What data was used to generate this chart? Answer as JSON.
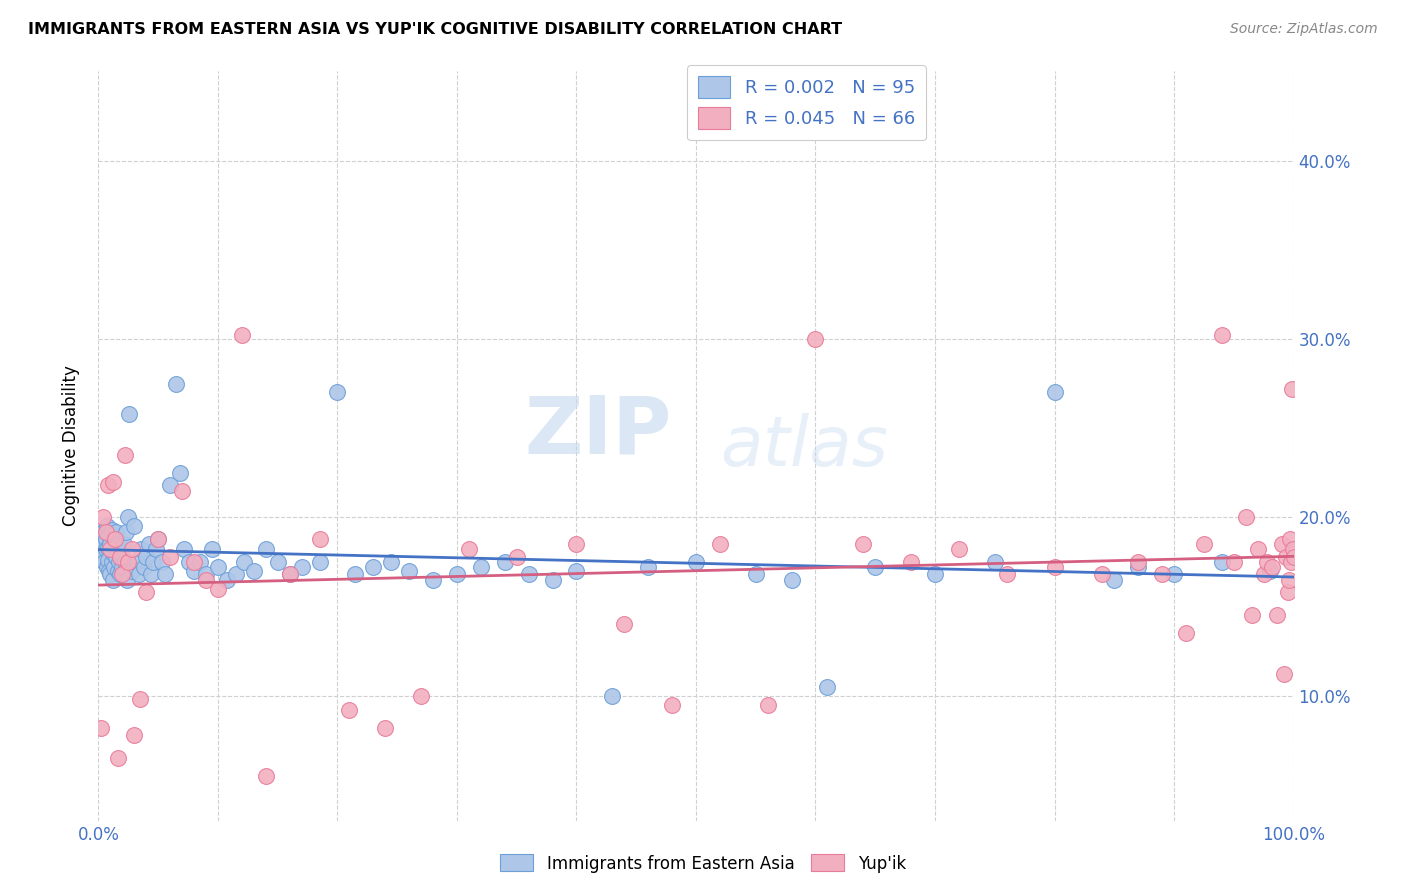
{
  "title": "IMMIGRANTS FROM EASTERN ASIA VS YUP'IK COGNITIVE DISABILITY CORRELATION CHART",
  "source": "Source: ZipAtlas.com",
  "ylabel": "Cognitive Disability",
  "ytick_labels": [
    "10.0%",
    "20.0%",
    "30.0%",
    "40.0%"
  ],
  "ytick_values": [
    0.1,
    0.2,
    0.3,
    0.4
  ],
  "xlim": [
    0.0,
    1.0
  ],
  "ylim": [
    0.03,
    0.45
  ],
  "blue_R": "R = 0.002",
  "blue_N": "N = 95",
  "pink_R": "R = 0.045",
  "pink_N": "N = 66",
  "blue_color": "#aec6e8",
  "pink_color": "#f2afc0",
  "blue_edge_color": "#6a9fd8",
  "pink_edge_color": "#e87a9a",
  "blue_line_color": "#4472c4",
  "pink_line_color": "#d45f80",
  "legend_label_blue": "Immigrants from Eastern Asia",
  "legend_label_pink": "Yup'ik",
  "watermark_zip": "ZIP",
  "watermark_atlas": "atlas",
  "blue_scatter_x": [
    0.002,
    0.003,
    0.004,
    0.005,
    0.006,
    0.006,
    0.007,
    0.007,
    0.008,
    0.008,
    0.009,
    0.009,
    0.01,
    0.01,
    0.011,
    0.011,
    0.012,
    0.012,
    0.013,
    0.013,
    0.014,
    0.015,
    0.015,
    0.016,
    0.016,
    0.017,
    0.018,
    0.019,
    0.02,
    0.021,
    0.022,
    0.023,
    0.024,
    0.025,
    0.026,
    0.028,
    0.03,
    0.032,
    0.034,
    0.036,
    0.038,
    0.04,
    0.042,
    0.044,
    0.046,
    0.048,
    0.05,
    0.053,
    0.056,
    0.06,
    0.065,
    0.068,
    0.072,
    0.076,
    0.08,
    0.085,
    0.09,
    0.095,
    0.1,
    0.108,
    0.115,
    0.122,
    0.13,
    0.14,
    0.15,
    0.16,
    0.17,
    0.185,
    0.2,
    0.215,
    0.23,
    0.245,
    0.26,
    0.28,
    0.3,
    0.32,
    0.34,
    0.36,
    0.38,
    0.4,
    0.43,
    0.46,
    0.5,
    0.55,
    0.58,
    0.61,
    0.65,
    0.7,
    0.75,
    0.8,
    0.85,
    0.87,
    0.9,
    0.94,
    0.98
  ],
  "blue_scatter_y": [
    0.185,
    0.178,
    0.192,
    0.175,
    0.188,
    0.182,
    0.195,
    0.172,
    0.183,
    0.176,
    0.19,
    0.17,
    0.185,
    0.168,
    0.193,
    0.175,
    0.18,
    0.165,
    0.188,
    0.172,
    0.183,
    0.178,
    0.192,
    0.17,
    0.185,
    0.175,
    0.168,
    0.18,
    0.172,
    0.185,
    0.175,
    0.192,
    0.165,
    0.2,
    0.258,
    0.17,
    0.195,
    0.175,
    0.168,
    0.182,
    0.172,
    0.178,
    0.185,
    0.168,
    0.175,
    0.182,
    0.188,
    0.175,
    0.168,
    0.218,
    0.275,
    0.225,
    0.182,
    0.175,
    0.17,
    0.175,
    0.168,
    0.182,
    0.172,
    0.165,
    0.168,
    0.175,
    0.17,
    0.182,
    0.175,
    0.168,
    0.172,
    0.175,
    0.27,
    0.168,
    0.172,
    0.175,
    0.17,
    0.165,
    0.168,
    0.172,
    0.175,
    0.168,
    0.165,
    0.17,
    0.1,
    0.172,
    0.175,
    0.168,
    0.165,
    0.105,
    0.172,
    0.168,
    0.175,
    0.27,
    0.165,
    0.172,
    0.168,
    0.175,
    0.17
  ],
  "pink_scatter_x": [
    0.002,
    0.004,
    0.006,
    0.008,
    0.01,
    0.012,
    0.014,
    0.016,
    0.018,
    0.02,
    0.022,
    0.025,
    0.028,
    0.03,
    0.035,
    0.04,
    0.05,
    0.06,
    0.07,
    0.08,
    0.09,
    0.1,
    0.12,
    0.14,
    0.16,
    0.185,
    0.21,
    0.24,
    0.27,
    0.31,
    0.35,
    0.4,
    0.44,
    0.48,
    0.52,
    0.56,
    0.6,
    0.64,
    0.68,
    0.72,
    0.76,
    0.8,
    0.84,
    0.87,
    0.89,
    0.91,
    0.925,
    0.94,
    0.95,
    0.96,
    0.965,
    0.97,
    0.975,
    0.978,
    0.982,
    0.986,
    0.99,
    0.992,
    0.994,
    0.995,
    0.996,
    0.997,
    0.998,
    0.999,
    0.9995,
    1.0
  ],
  "pink_scatter_y": [
    0.082,
    0.2,
    0.192,
    0.218,
    0.182,
    0.22,
    0.188,
    0.065,
    0.178,
    0.168,
    0.235,
    0.175,
    0.182,
    0.078,
    0.098,
    0.158,
    0.188,
    0.178,
    0.215,
    0.175,
    0.165,
    0.16,
    0.302,
    0.055,
    0.168,
    0.188,
    0.092,
    0.082,
    0.1,
    0.182,
    0.178,
    0.185,
    0.14,
    0.095,
    0.185,
    0.095,
    0.3,
    0.185,
    0.175,
    0.182,
    0.168,
    0.172,
    0.168,
    0.175,
    0.168,
    0.135,
    0.185,
    0.302,
    0.175,
    0.2,
    0.145,
    0.182,
    0.168,
    0.175,
    0.172,
    0.145,
    0.185,
    0.112,
    0.178,
    0.158,
    0.165,
    0.188,
    0.175,
    0.272,
    0.182,
    0.178
  ]
}
